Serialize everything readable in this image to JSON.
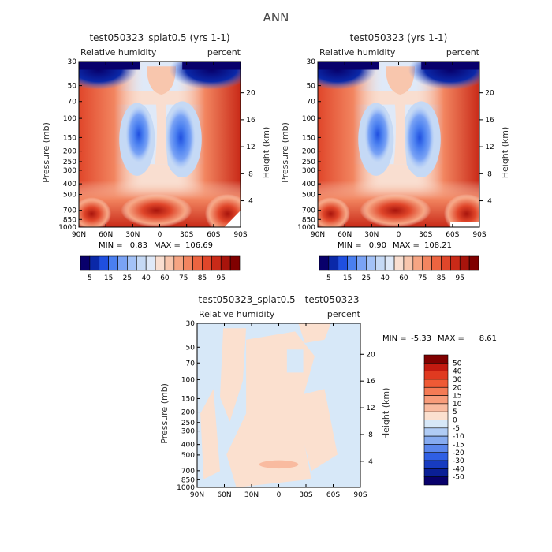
{
  "page_title": "ANN",
  "panels": [
    {
      "title": "test050323_splat0.5 (yrs 1-1)",
      "var_label": "Relative humidity",
      "units": "percent",
      "stats": {
        "min_label": "MIN =",
        "min": "0.83",
        "max_label": "MAX =",
        "max": "106.69"
      }
    },
    {
      "title": "test050323 (yrs 1-1)",
      "var_label": "Relative humidity",
      "units": "percent",
      "stats": {
        "min_label": "MIN =",
        "min": "0.90",
        "max_label": "MAX =",
        "max": "108.21"
      }
    },
    {
      "title": "test050323_splat0.5 - test050323",
      "var_label": "Relative humidity",
      "units": "percent",
      "stats": {
        "min_label": "MIN =",
        "min": "-5.33",
        "max_label": "MAX =",
        "max": "8.61"
      }
    }
  ],
  "axes": {
    "ylabel_left": "Pressure (mb)",
    "ylabel_right": "Height (km)",
    "x_ticks": [
      "90N",
      "60N",
      "30N",
      "0",
      "30S",
      "60S",
      "90S"
    ],
    "p_ticks": [
      "30",
      "50",
      "70",
      "100",
      "150",
      "200",
      "250",
      "300",
      "400",
      "500",
      "700",
      "850",
      "1000"
    ],
    "p_values": [
      30,
      50,
      70,
      100,
      150,
      200,
      250,
      300,
      400,
      500,
      700,
      850,
      1000
    ],
    "h_ticks": [
      "20",
      "16",
      "12",
      "8",
      "4"
    ],
    "h_values": [
      20,
      16,
      12,
      8,
      4
    ]
  },
  "colorbar_main": {
    "labels": [
      "5",
      "15",
      "25",
      "40",
      "60",
      "75",
      "85",
      "95"
    ],
    "colors": [
      "#08006b",
      "#0a28a8",
      "#1f4fe0",
      "#4a7ff0",
      "#7aa3f5",
      "#a3c2f7",
      "#c5d9f5",
      "#dfe9f8",
      "#f9ded0",
      "#f8c6ad",
      "#f6a583",
      "#f28560",
      "#ec6440",
      "#e0462a",
      "#c92a18",
      "#a8140c",
      "#800000"
    ]
  },
  "colorbar_diff": {
    "labels": [
      "50",
      "40",
      "30",
      "20",
      "15",
      "10",
      "5",
      "0",
      "-5",
      "-10",
      "-15",
      "-20",
      "-30",
      "-40",
      "-50"
    ],
    "colors": [
      "#800000",
      "#c21a10",
      "#e03a20",
      "#ef5a35",
      "#f57b55",
      "#f89c7a",
      "#f9bba0",
      "#fbe0cf",
      "#d7e8f8",
      "#b0ccf5",
      "#86abf0",
      "#5a86ec",
      "#2f5fe4",
      "#173bc0",
      "#0a1f96",
      "#08006b"
    ]
  },
  "chart_data": [
    {
      "type": "heatmap",
      "title": "test050323_splat0.5 (yrs 1-1)",
      "xlabel": "",
      "ylabel": "Pressure (mb)",
      "x": [
        "90N",
        "60N",
        "30N",
        "0",
        "30S",
        "60S",
        "90S"
      ],
      "y": [
        1000,
        850,
        700,
        500,
        400,
        300,
        250,
        200,
        150,
        100,
        70,
        50,
        30
      ],
      "values": [
        [
          95,
          90,
          75,
          70,
          80,
          85,
          95
        ],
        [
          80,
          72,
          55,
          65,
          55,
          75,
          88
        ],
        [
          75,
          60,
          35,
          55,
          25,
          60,
          80
        ],
        [
          72,
          55,
          25,
          50,
          15,
          55,
          75
        ],
        [
          70,
          55,
          30,
          45,
          25,
          55,
          70
        ],
        [
          70,
          55,
          40,
          40,
          40,
          60,
          70
        ],
        [
          60,
          55,
          45,
          40,
          45,
          55,
          60
        ],
        [
          55,
          50,
          45,
          45,
          45,
          50,
          55
        ],
        [
          40,
          40,
          50,
          65,
          55,
          45,
          40
        ],
        [
          15,
          20,
          40,
          70,
          40,
          20,
          15
        ],
        [
          5,
          5,
          25,
          60,
          25,
          5,
          5
        ],
        [
          5,
          5,
          15,
          40,
          15,
          5,
          5
        ],
        [
          5,
          5,
          10,
          30,
          10,
          5,
          5
        ]
      ],
      "zmin": 0.83,
      "zmax": 106.69
    },
    {
      "type": "heatmap",
      "title": "test050323 (yrs 1-1)",
      "xlabel": "",
      "ylabel": "Pressure (mb)",
      "x": [
        "90N",
        "60N",
        "30N",
        "0",
        "30S",
        "60S",
        "90S"
      ],
      "y": [
        1000,
        850,
        700,
        500,
        400,
        300,
        250,
        200,
        150,
        100,
        70,
        50,
        30
      ],
      "values": [
        [
          95,
          92,
          75,
          70,
          80,
          85,
          95
        ],
        [
          80,
          72,
          55,
          65,
          55,
          75,
          88
        ],
        [
          75,
          60,
          35,
          55,
          25,
          60,
          80
        ],
        [
          72,
          55,
          25,
          50,
          15,
          55,
          75
        ],
        [
          70,
          55,
          30,
          45,
          25,
          55,
          70
        ],
        [
          70,
          55,
          40,
          40,
          40,
          60,
          70
        ],
        [
          60,
          55,
          45,
          40,
          45,
          55,
          60
        ],
        [
          55,
          50,
          45,
          45,
          45,
          50,
          55
        ],
        [
          40,
          40,
          50,
          65,
          55,
          45,
          40
        ],
        [
          15,
          20,
          40,
          70,
          40,
          20,
          15
        ],
        [
          5,
          5,
          25,
          60,
          25,
          5,
          5
        ],
        [
          5,
          5,
          15,
          40,
          15,
          5,
          5
        ],
        [
          5,
          5,
          10,
          30,
          10,
          5,
          5
        ]
      ],
      "zmin": 0.9,
      "zmax": 108.21
    },
    {
      "type": "heatmap",
      "title": "test050323_splat0.5 - test050323",
      "xlabel": "",
      "ylabel": "Pressure (mb)",
      "x": [
        "90N",
        "60N",
        "30N",
        "0",
        "30S",
        "60S",
        "90S"
      ],
      "y": [
        1000,
        850,
        700,
        500,
        400,
        300,
        250,
        200,
        150,
        100,
        70,
        50,
        30
      ],
      "values": [
        [
          -2,
          2,
          2,
          2,
          2,
          2,
          -2
        ],
        [
          -2,
          2,
          5,
          5,
          2,
          2,
          -2
        ],
        [
          -2,
          -2,
          2,
          2,
          2,
          2,
          -2
        ],
        [
          -2,
          -2,
          2,
          2,
          2,
          -2,
          -2
        ],
        [
          -2,
          2,
          2,
          2,
          2,
          -2,
          -2
        ],
        [
          -2,
          2,
          -2,
          2,
          2,
          -2,
          -2
        ],
        [
          -2,
          -2,
          2,
          2,
          2,
          -2,
          -2
        ],
        [
          -2,
          2,
          2,
          2,
          -2,
          -2,
          -2
        ],
        [
          -2,
          2,
          2,
          2,
          2,
          -2,
          -2
        ],
        [
          -2,
          2,
          -2,
          2,
          -2,
          -2,
          -2
        ],
        [
          -2,
          -2,
          2,
          -2,
          -2,
          -2,
          -2
        ],
        [
          -2,
          -2,
          -2,
          -2,
          -2,
          -2,
          -2
        ],
        [
          -2,
          -2,
          -2,
          -2,
          -2,
          -2,
          -2
        ]
      ],
      "zmin": -5.33,
      "zmax": 8.61
    }
  ]
}
